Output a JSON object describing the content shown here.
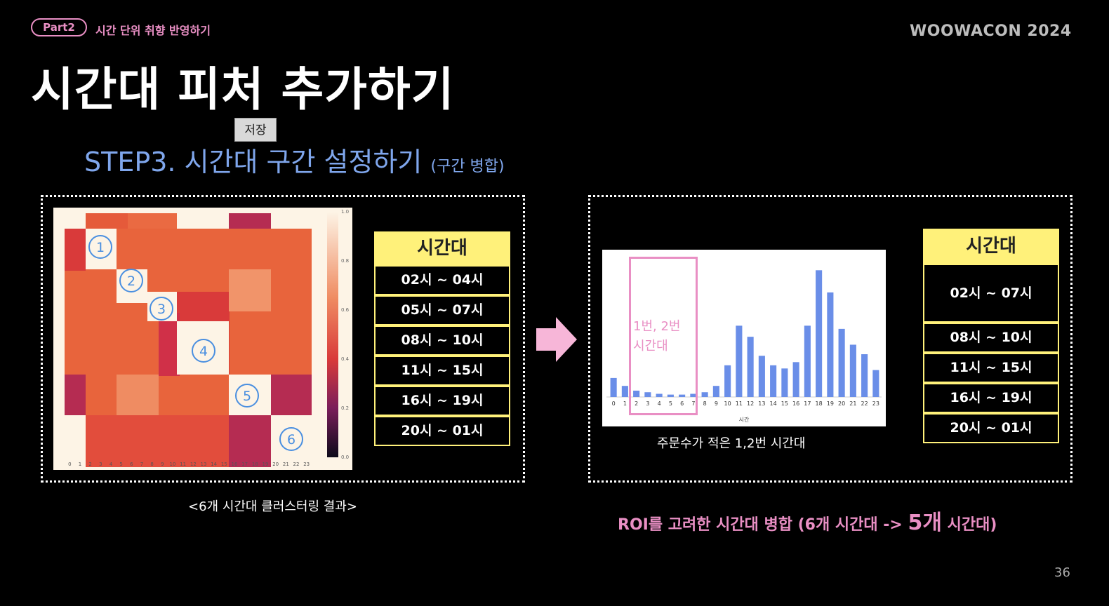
{
  "header": {
    "part_badge": "Part2",
    "part_title": "시간 단위 취향 반영하기",
    "brand": "WOOWACON 2024"
  },
  "title": "시간대 피처 추가하기",
  "save_tooltip": "저장",
  "step": {
    "label": "STEP3. 시간대 구간 설정하기",
    "sub": "(구간 병합)"
  },
  "left_panel": {
    "table_header": "시간대",
    "rows": [
      "02시 ~ 04시",
      "05시 ~ 07시",
      "08시 ~ 10시",
      "11시 ~ 15시",
      "16시 ~ 19시",
      "20시 ~ 01시"
    ],
    "cluster_labels": [
      "1",
      "2",
      "3",
      "4",
      "5",
      "6"
    ],
    "caption": "<6개 시간대 클러스터링 결과>",
    "colorbar_ticks": [
      "1.0",
      "0.8",
      "0.6",
      "0.4",
      "0.2",
      "0.0"
    ],
    "axis_ticks": [
      "0",
      "1",
      "2",
      "3",
      "4",
      "5",
      "6",
      "7",
      "8",
      "9",
      "10",
      "11",
      "12",
      "13",
      "14",
      "15",
      "16",
      "17",
      "18",
      "19",
      "20",
      "21",
      "22",
      "23"
    ]
  },
  "right_panel": {
    "table_header": "시간대",
    "rows": [
      "02시 ~ 07시",
      "08시 ~ 10시",
      "11시 ~ 15시",
      "16시 ~ 19시",
      "20시 ~ 01시"
    ],
    "roi_label_line1": "1번, 2번",
    "roi_label_line2": "시간대",
    "chart_caption": "주문수가 적은 1,2번 시간대",
    "chart_xlabel": "시간"
  },
  "bottom_caption": {
    "prefix": "ROI를 고려한 시간대 병합 (6개 시간대 -> ",
    "highlight": "5개",
    "suffix": " 시간대)"
  },
  "page_number": "36",
  "colors": {
    "accent_pink": "#e98fc4",
    "step_blue": "#7fa6ec",
    "table_yellow": "#fff17a",
    "bar_blue": "#6a8ee8"
  },
  "chart_data": {
    "type": "bar",
    "categories": [
      "0",
      "1",
      "2",
      "3",
      "4",
      "5",
      "6",
      "7",
      "8",
      "9",
      "10",
      "11",
      "12",
      "13",
      "14",
      "15",
      "16",
      "17",
      "18",
      "19",
      "20",
      "21",
      "22",
      "23"
    ],
    "values": [
      12,
      7,
      4,
      3,
      2,
      1.5,
      1.5,
      2,
      3,
      7,
      20,
      45,
      38,
      26,
      20,
      18,
      22,
      45,
      80,
      66,
      43,
      33,
      27,
      17
    ],
    "xlabel": "시간",
    "ylim": [
      0,
      85
    ]
  }
}
